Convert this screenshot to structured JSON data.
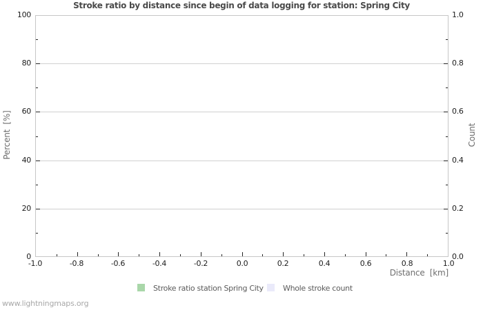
{
  "chart_data": {
    "type": "line",
    "title": "Stroke ratio by distance since begin of data logging for station: Spring City",
    "x_axis": {
      "label": "Distance  [km]",
      "min": -1.0,
      "max": 1.0,
      "minor_step": 0.1,
      "major_ticks": [
        "-1.0",
        "-0.8",
        "-0.6",
        "-0.4",
        "-0.2",
        "0.0",
        "0.2",
        "0.4",
        "0.6",
        "0.8",
        "1.0"
      ]
    },
    "y_left": {
      "label": "Percent  [%]",
      "min": 0,
      "max": 100,
      "minor_step": 10,
      "major_ticks": [
        "0",
        "20",
        "40",
        "60",
        "80",
        "100"
      ]
    },
    "y_right": {
      "label": "Count",
      "min": 0.0,
      "max": 1.0,
      "minor_step": 0.1,
      "major_ticks": [
        "0.0",
        "0.2",
        "0.4",
        "0.6",
        "0.8",
        "1.0"
      ]
    },
    "grid": "horizontal-major-only",
    "legend_position": "bottom",
    "series": [
      {
        "name": "Stroke ratio station Spring City",
        "color": "#a9d7a9",
        "x": [],
        "values": []
      },
      {
        "name": "Whole stroke count",
        "color": "#eaeafa",
        "x": [],
        "values": []
      }
    ]
  },
  "legend": {
    "items": [
      {
        "label": "Stroke ratio station Spring City",
        "color": "#a9d7a9"
      },
      {
        "label": "Whole stroke count",
        "color": "#eaeafa"
      }
    ]
  },
  "footer": {
    "watermark": "www.lightningmaps.org"
  },
  "colors": {
    "title_text": "#4a4a4a",
    "tick_label_text": "#1c1c1c",
    "axis_title_text": "#6e6e6e",
    "gridline": "#d0d0d0",
    "plot_border": "#c6c6c6"
  }
}
